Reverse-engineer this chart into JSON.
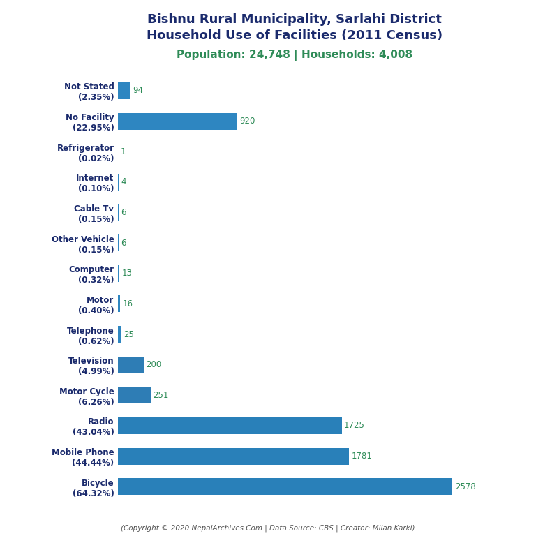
{
  "title_line1": "Bishnu Rural Municipality, Sarlahi District",
  "title_line2": "Household Use of Facilities (2011 Census)",
  "subtitle": "Population: 24,748 | Households: 4,008",
  "footer": "(Copyright © 2020 NepalArchives.Com | Data Source: CBS | Creator: Milan Karki)",
  "categories": [
    "Not Stated\n(2.35%)",
    "No Facility\n(22.95%)",
    "Refrigerator\n(0.02%)",
    "Internet\n(0.10%)",
    "Cable Tv\n(0.15%)",
    "Other Vehicle\n(0.15%)",
    "Computer\n(0.32%)",
    "Motor\n(0.40%)",
    "Telephone\n(0.62%)",
    "Television\n(4.99%)",
    "Motor Cycle\n(6.26%)",
    "Radio\n(43.04%)",
    "Mobile Phone\n(44.44%)",
    "Bicycle\n(64.32%)"
  ],
  "values": [
    94,
    920,
    1,
    4,
    6,
    6,
    13,
    16,
    25,
    200,
    251,
    1725,
    1781,
    2578
  ],
  "bar_colors": [
    "#2e86c1",
    "#2e86c1",
    "#2e86c1",
    "#2e86c1",
    "#2e86c1",
    "#2e86c1",
    "#2e86c1",
    "#2e86c1",
    "#2e86c1",
    "#2e7db5",
    "#2e7db5",
    "#2980b9",
    "#2980b9",
    "#2980b9"
  ],
  "title_color": "#1a2a6c",
  "subtitle_color": "#2e8b57",
  "value_color": "#2e8b57",
  "footer_color": "#555555",
  "background_color": "#ffffff",
  "xlim": [
    0,
    2850
  ]
}
